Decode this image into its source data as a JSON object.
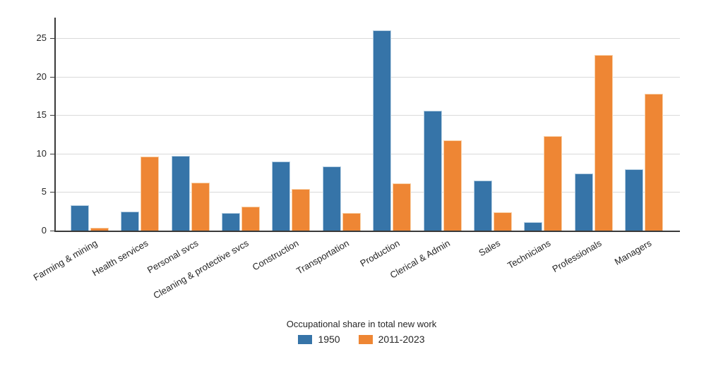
{
  "chart_data": {
    "type": "bar",
    "categories": [
      "Farming & mining",
      "Health services",
      "Personal svcs",
      "Cleaning & protective svcs",
      "Construction",
      "Transportation",
      "Production",
      "Clerical & Admin",
      "Sales",
      "Technicians",
      "Professionals",
      "Managers"
    ],
    "series": [
      {
        "name": "1950",
        "color": "#3674A8",
        "edge_color": "#B7D0E3",
        "values": [
          3.3,
          2.5,
          9.7,
          2.3,
          9.0,
          8.3,
          26.0,
          15.6,
          6.5,
          1.1,
          7.4,
          8.0
        ]
      },
      {
        "name": "2011-2023",
        "color": "#EE8634",
        "edge_color": "#F9D0A6",
        "values": [
          0.4,
          9.6,
          6.2,
          3.1,
          5.4,
          2.3,
          6.1,
          11.7,
          2.4,
          12.3,
          22.8,
          17.8
        ]
      }
    ],
    "legend_title": "Occupational share in total new work",
    "legend_position": "bottom-center",
    "xlabel": "",
    "ylabel": "",
    "yticks": [
      0,
      5,
      10,
      15,
      20,
      25
    ],
    "ylim": [
      0,
      27.5
    ],
    "grid": true,
    "x_tick_rotation_deg": 30,
    "gridline_color": "#d9d9d9",
    "axis_color": "#3a3a3a",
    "tick_label_color": "#262626",
    "background_color": "#ffffff"
  }
}
